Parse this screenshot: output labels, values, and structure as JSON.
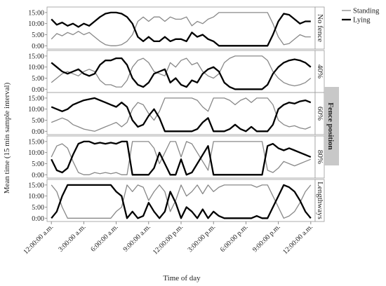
{
  "chart_data": {
    "type": "line",
    "ylabel": "Mean time (15 min sample interval)",
    "xlabel": "Time of day",
    "strip_title": "Fence position",
    "x_tick_labels": [
      "12:00:00 a.m.",
      "3:00:00 a.m.",
      "6:00:00 a.m.",
      "9:00:00 a.m.",
      "12:00:00 p.m.",
      "3:00:00 p.m.",
      "6:00:00 p.m.",
      "9:00:00 p.m.",
      "12:00:00 a.m."
    ],
    "x_tick_hours": [
      0,
      3,
      6,
      9,
      12,
      15,
      18,
      21,
      24
    ],
    "xlim_hours": [
      -0.4,
      24.4
    ],
    "y_tick_labels": [
      "0:00",
      "5:00",
      "10:00",
      "15:00"
    ],
    "y_ticks": [
      0,
      5,
      10,
      15
    ],
    "ylim": [
      -1.5,
      17.5
    ],
    "legend": [
      {
        "name": "Standing",
        "color": "#888888"
      },
      {
        "name": "Lying",
        "color": "#000000"
      }
    ],
    "grid": false,
    "panels": [
      {
        "label": "No fence",
        "series": [
          {
            "name": "Standing",
            "x": [
              0,
              0.5,
              1,
              1.5,
              2,
              2.5,
              3,
              3.5,
              4,
              4.5,
              5,
              5.5,
              6,
              6.5,
              7,
              7.5,
              8,
              8.5,
              9,
              9.5,
              10,
              10.5,
              11,
              11.5,
              12,
              12.5,
              13,
              13.5,
              14,
              14.5,
              15,
              15.5,
              16,
              17,
              18,
              19,
              19.5,
              20,
              20.5,
              21,
              21.5,
              22,
              22.5,
              23,
              23.5,
              24
            ],
            "y": [
              3,
              5.5,
              4.5,
              6,
              5,
              6.5,
              5,
              6,
              4,
              2,
              0.5,
              0,
              0,
              0.5,
              2,
              5,
              11,
              13,
              11,
              13,
              13,
              11,
              13,
              12,
              12,
              13,
              9,
              11,
              10,
              12,
              13,
              15,
              15,
              15,
              15,
              15,
              15,
              15,
              10,
              4,
              0.5,
              1,
              3,
              5,
              4,
              4
            ]
          },
          {
            "name": "Lying",
            "x": [
              0,
              0.5,
              1,
              1.5,
              2,
              2.5,
              3,
              3.5,
              4,
              4.5,
              5,
              5.5,
              6,
              6.5,
              7,
              7.5,
              8,
              8.5,
              9,
              9.5,
              10,
              10.5,
              11,
              11.5,
              12,
              12.5,
              13,
              13.5,
              14,
              14.5,
              15,
              15.5,
              16,
              17,
              18,
              19,
              19.5,
              20,
              20.5,
              21,
              21.5,
              22,
              22.5,
              23,
              23.5,
              24
            ],
            "y": [
              12,
              9.5,
              10.5,
              9,
              10,
              8.5,
              10,
              9,
              11,
              13,
              14.5,
              15,
              15,
              14.5,
              13,
              10,
              4,
              2,
              4,
              2,
              2,
              4,
              2,
              3,
              3,
              2,
              6,
              4,
              5,
              3,
              2,
              0,
              0,
              0,
              0,
              0,
              0,
              0,
              5,
              11,
              14.5,
              14,
              12,
              10,
              11,
              11
            ]
          }
        ]
      },
      {
        "label": "40%",
        "series": [
          {
            "name": "Standing",
            "x": [
              0,
              0.5,
              1,
              1.5,
              2,
              2.5,
              3,
              3.5,
              4,
              4.5,
              5,
              5.5,
              6,
              6.5,
              7,
              7.5,
              8,
              8.5,
              9,
              9.5,
              10,
              10.5,
              11,
              11.5,
              12,
              12.5,
              13,
              13.5,
              14,
              14.5,
              15,
              15.5,
              16,
              16.5,
              17,
              18,
              19,
              19.5,
              20,
              20.5,
              21,
              21.5,
              22,
              22.5,
              23,
              23.5,
              24
            ],
            "y": [
              3,
              5,
              7,
              8,
              7,
              6,
              8,
              9,
              8,
              4,
              2,
              2,
              1,
              1,
              4,
              10,
              13,
              14,
              12,
              8,
              7,
              6,
              12,
              10,
              13,
              14,
              11,
              12,
              8,
              6,
              5,
              7,
              12,
              14,
              15,
              15,
              15,
              15,
              13,
              8,
              5,
              3,
              2,
              1.5,
              2,
              3,
              5
            ]
          },
          {
            "name": "Lying",
            "x": [
              0,
              0.5,
              1,
              1.5,
              2,
              2.5,
              3,
              3.5,
              4,
              4.5,
              5,
              5.5,
              6,
              6.5,
              7,
              7.5,
              8,
              8.5,
              9,
              9.5,
              10,
              10.5,
              11,
              11.5,
              12,
              12.5,
              13,
              13.5,
              14,
              14.5,
              15,
              15.5,
              16,
              16.5,
              17,
              18,
              19,
              19.5,
              20,
              20.5,
              21,
              21.5,
              22,
              22.5,
              23,
              23.5,
              24
            ],
            "y": [
              12,
              10,
              8,
              7,
              8,
              9,
              7,
              6,
              7,
              11,
              13,
              13,
              14,
              14,
              11,
              5,
              2,
              1,
              3,
              7,
              8,
              9,
              3,
              5,
              2,
              1,
              4,
              3,
              7,
              9,
              10,
              8,
              3,
              1,
              0,
              0,
              0,
              0,
              2,
              7,
              10,
              12,
              13,
              13.5,
              13,
              12,
              10
            ]
          }
        ]
      },
      {
        "label": "60%",
        "series": [
          {
            "name": "Standing",
            "x": [
              0,
              0.5,
              1,
              1.5,
              2,
              2.5,
              3,
              3.5,
              4,
              4.5,
              5,
              5.5,
              6,
              6.5,
              7,
              7.5,
              8,
              8.5,
              9,
              9.5,
              10,
              10.5,
              11,
              11.5,
              12,
              12.5,
              13,
              13.5,
              14,
              14.5,
              15,
              15.5,
              16,
              16.5,
              17,
              17.5,
              18,
              18.5,
              19,
              19.5,
              20,
              20.5,
              21,
              21.5,
              22,
              22.5,
              23,
              23.5,
              24
            ],
            "y": [
              4,
              5,
              6,
              5,
              3,
              2,
              1,
              0.5,
              0,
              1,
              2,
              3,
              4,
              2,
              4,
              10,
              13,
              12,
              8,
              5,
              9,
              15,
              15,
              15,
              15,
              15,
              15,
              14,
              11,
              9,
              15,
              15,
              15,
              14,
              12,
              14,
              15,
              13,
              15,
              15,
              15,
              12,
              5,
              3,
              2,
              2.5,
              1.5,
              1,
              2
            ]
          },
          {
            "name": "Lying",
            "x": [
              0,
              0.5,
              1,
              1.5,
              2,
              2.5,
              3,
              3.5,
              4,
              4.5,
              5,
              5.5,
              6,
              6.5,
              7,
              7.5,
              8,
              8.5,
              9,
              9.5,
              10,
              10.5,
              11,
              11.5,
              12,
              12.5,
              13,
              13.5,
              14,
              14.5,
              15,
              15.5,
              16,
              16.5,
              17,
              17.5,
              18,
              18.5,
              19,
              19.5,
              20,
              20.5,
              21,
              21.5,
              22,
              22.5,
              23,
              23.5,
              24
            ],
            "y": [
              11,
              10,
              9,
              10,
              12,
              13,
              14,
              14.5,
              15,
              14,
              13,
              12,
              11,
              13,
              11,
              5,
              2,
              3,
              7,
              10,
              6,
              0,
              0,
              0,
              0,
              0,
              0,
              1,
              4,
              6,
              0,
              0,
              0,
              1,
              3,
              1,
              0,
              2,
              0,
              0,
              0,
              3,
              10,
              12,
              13,
              12.5,
              13.5,
              14,
              13
            ]
          }
        ]
      },
      {
        "label": "80%",
        "series": [
          {
            "name": "Standing",
            "x": [
              0,
              0.5,
              1,
              1.5,
              2,
              2.5,
              3,
              3.5,
              4,
              4.5,
              5,
              5.5,
              6,
              6.5,
              7,
              7.5,
              8,
              8.5,
              9,
              9.5,
              10,
              10.5,
              11,
              11.5,
              12,
              12.5,
              13,
              13.5,
              14,
              14.5,
              15,
              15.5,
              16,
              16.5,
              17,
              17.5,
              18,
              18.5,
              19,
              19.5,
              20,
              20.5,
              21,
              21.5,
              22,
              22.5,
              23,
              23.5,
              24
            ],
            "y": [
              8,
              13,
              14,
              12,
              6,
              1,
              0,
              0,
              1,
              0.5,
              1,
              0.5,
              1,
              0,
              0,
              15,
              15,
              15,
              15,
              12,
              5,
              10,
              15,
              15,
              8,
              15,
              14,
              10,
              6,
              2,
              15,
              15,
              15,
              15,
              15,
              15,
              15,
              15,
              15,
              15,
              2,
              1,
              3,
              6,
              5,
              4,
              5,
              6,
              7
            ]
          },
          {
            "name": "Lying",
            "x": [
              0,
              0.5,
              1,
              1.5,
              2,
              2.5,
              3,
              3.5,
              4,
              4.5,
              5,
              5.5,
              6,
              6.5,
              7,
              7.5,
              8,
              8.5,
              9,
              9.5,
              10,
              10.5,
              11,
              11.5,
              12,
              12.5,
              13,
              13.5,
              14,
              14.5,
              15,
              15.5,
              16,
              16.5,
              17,
              17.5,
              18,
              18.5,
              19,
              19.5,
              20,
              20.5,
              21,
              21.5,
              22,
              22.5,
              23,
              23.5,
              24
            ],
            "y": [
              7,
              2,
              1,
              3,
              9,
              14,
              15,
              15,
              14,
              14.5,
              14,
              14.5,
              14,
              15,
              15,
              0,
              0,
              0,
              0,
              3,
              10,
              5,
              0,
              0,
              7,
              0,
              1,
              5,
              9,
              13,
              0,
              0,
              0,
              0,
              0,
              0,
              0,
              0,
              0,
              0,
              13,
              14,
              12,
              11,
              12,
              11,
              10,
              9,
              8
            ]
          }
        ]
      },
      {
        "label": "Lengthways",
        "series": [
          {
            "name": "Standing",
            "x": [
              0,
              0.5,
              1,
              1.5,
              2,
              2.5,
              3,
              3.5,
              4,
              4.5,
              5,
              5.5,
              6,
              6.5,
              7,
              7.5,
              8,
              8.5,
              9,
              9.5,
              10,
              10.5,
              11,
              11.5,
              12,
              12.5,
              13,
              13.5,
              14,
              14.5,
              15,
              15.5,
              16,
              16.5,
              17,
              17.5,
              18,
              18.5,
              19,
              19.5,
              20,
              20.5,
              21,
              21.5,
              22,
              22.5,
              23,
              23.5,
              24
            ],
            "y": [
              15,
              12,
              5,
              0,
              0,
              0,
              0,
              0,
              0,
              0,
              0,
              0,
              3,
              5,
              15,
              12,
              15,
              14,
              8,
              12,
              15,
              12,
              3,
              8,
              15,
              10,
              12,
              15,
              11,
              15,
              12,
              14,
              15,
              15,
              15,
              15,
              15,
              15,
              14,
              15,
              15,
              10,
              5,
              0,
              1,
              3,
              7,
              12,
              15
            ]
          },
          {
            "name": "Lying",
            "x": [
              0,
              0.5,
              1,
              1.5,
              2,
              2.5,
              3,
              3.5,
              4,
              4.5,
              5,
              5.5,
              6,
              6.5,
              7,
              7.5,
              8,
              8.5,
              9,
              9.5,
              10,
              10.5,
              11,
              11.5,
              12,
              12.5,
              13,
              13.5,
              14,
              14.5,
              15,
              15.5,
              16,
              16.5,
              17,
              17.5,
              18,
              18.5,
              19,
              19.5,
              20,
              20.5,
              21,
              21.5,
              22,
              22.5,
              23,
              23.5,
              24
            ],
            "y": [
              0,
              3,
              10,
              15,
              15,
              15,
              15,
              15,
              15,
              15,
              15,
              15,
              12,
              10,
              0,
              3,
              0,
              1,
              7,
              3,
              0,
              3,
              12,
              7,
              0,
              5,
              3,
              0,
              4,
              0,
              3,
              1,
              0,
              0,
              0,
              0,
              0,
              0,
              1,
              0,
              0,
              5,
              10,
              15,
              14,
              12,
              8,
              3,
              0
            ]
          }
        ]
      }
    ]
  }
}
